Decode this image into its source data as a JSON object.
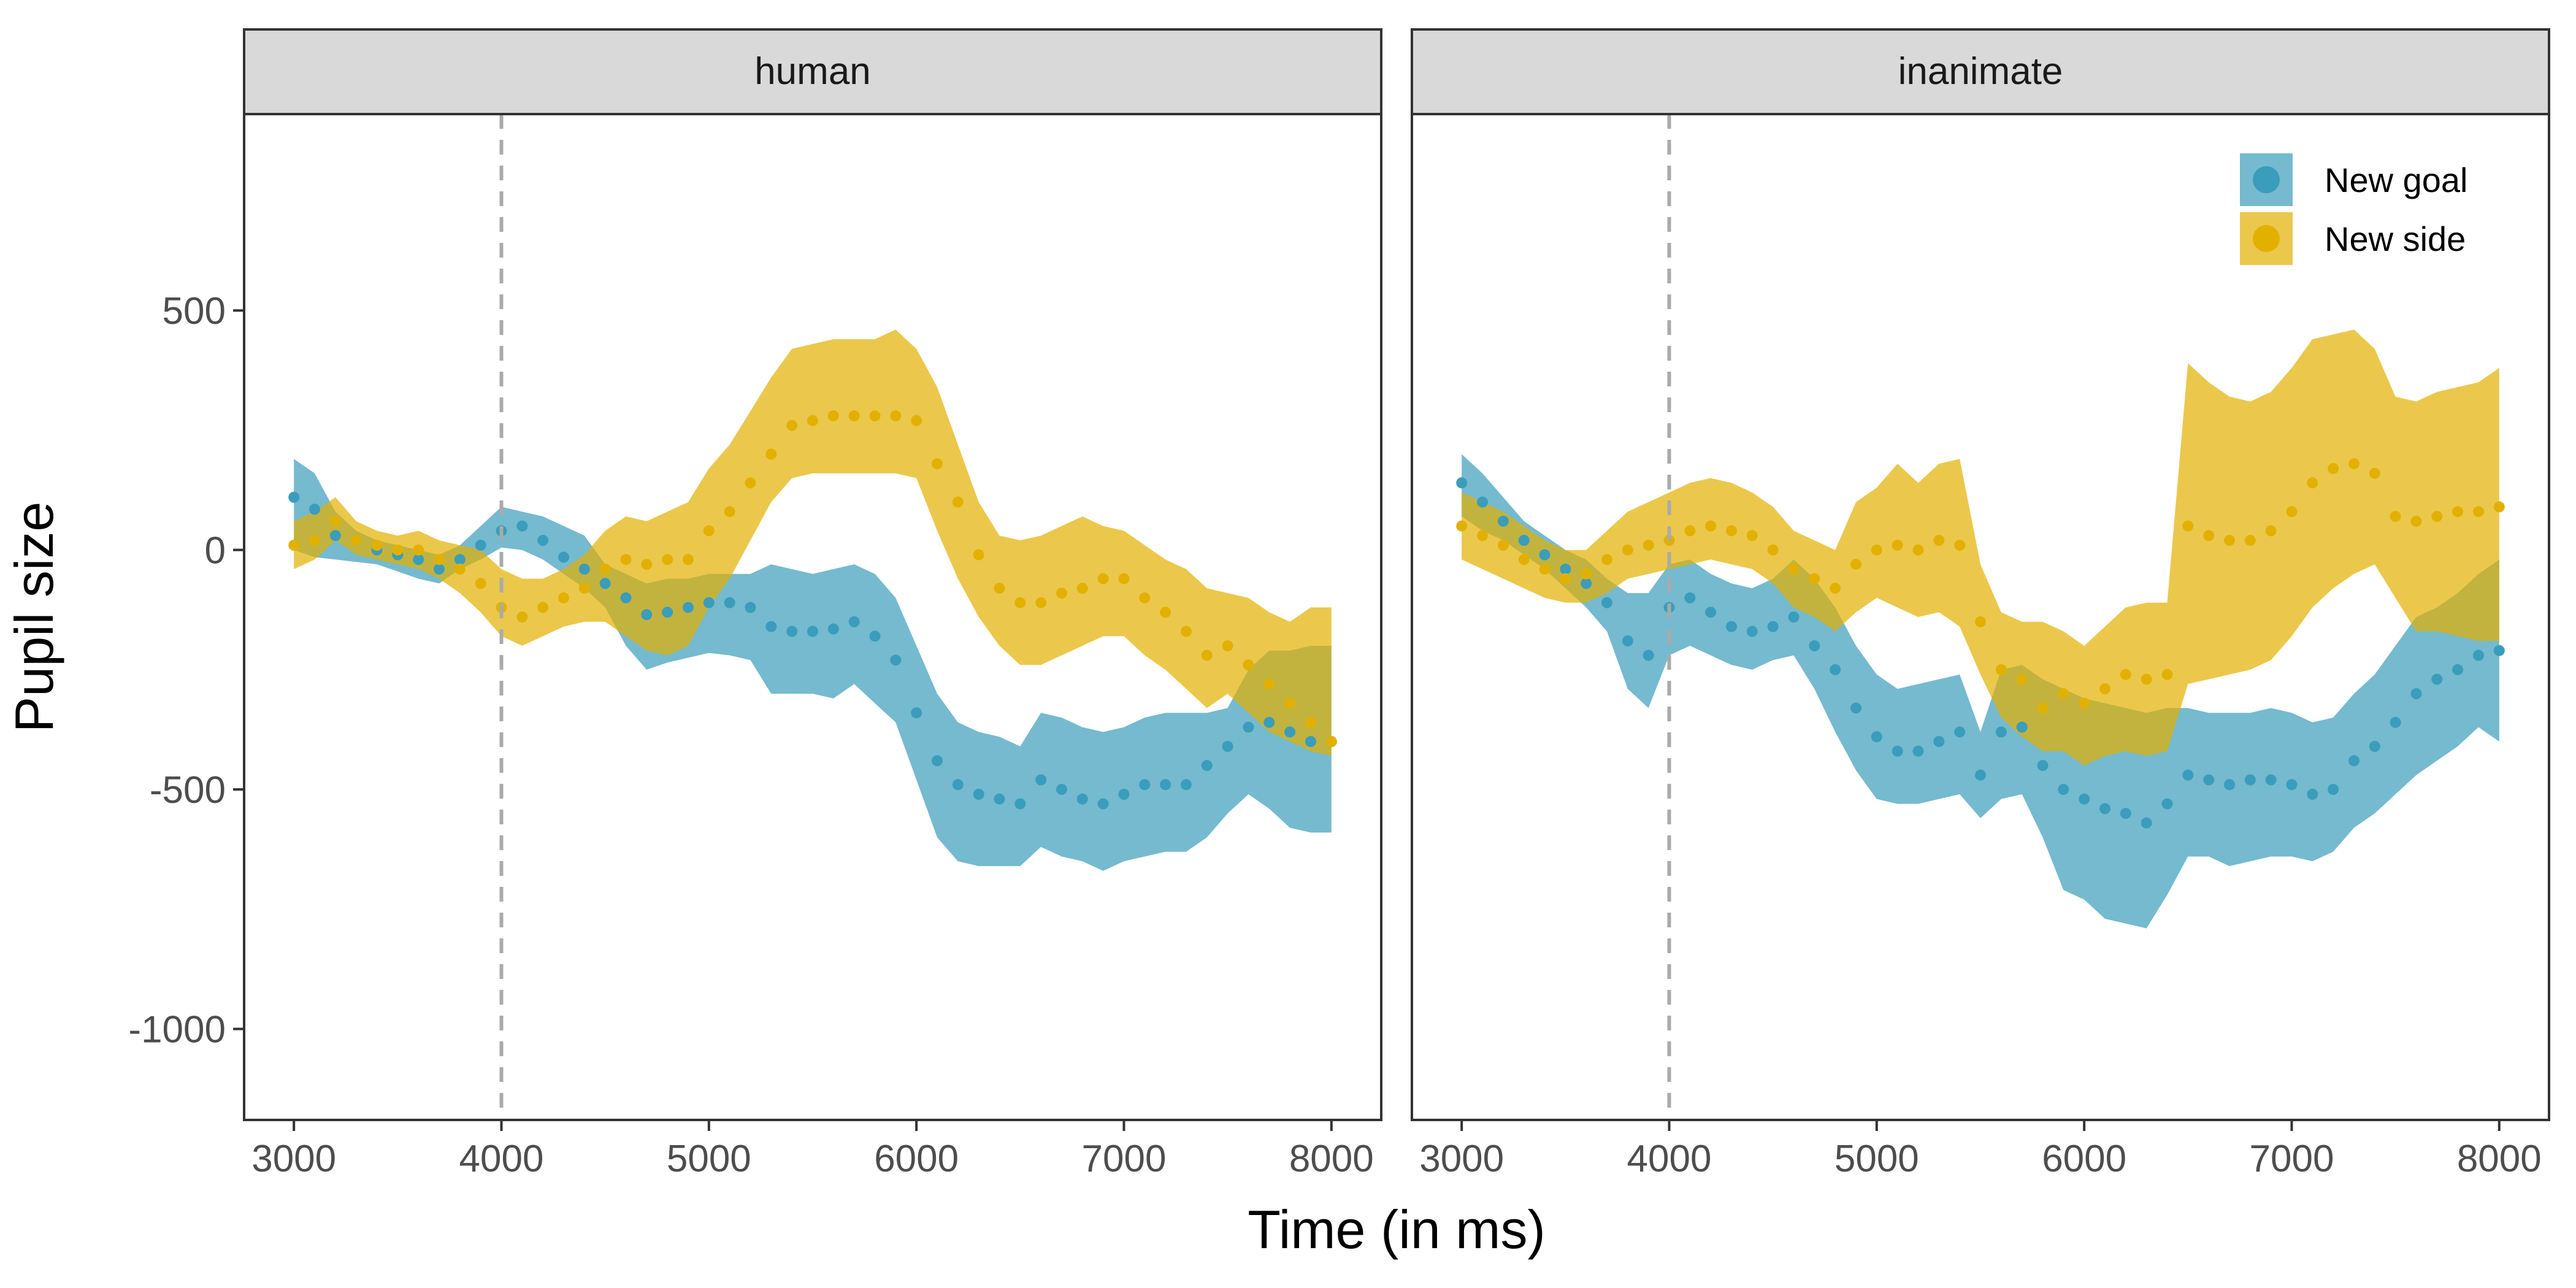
{
  "chart_data": {
    "type": "scatter",
    "xlabel": "Time (in ms)",
    "ylabel": "Pupil size",
    "xlim": [
      2760,
      8240
    ],
    "ylim": [
      -1190,
      910
    ],
    "x_ticks": [
      3000,
      4000,
      5000,
      6000,
      7000,
      8000
    ],
    "y_ticks": [
      500,
      0,
      -500,
      -1000
    ],
    "reference_line_x": 4000,
    "colors": {
      "New goal": "#3A9DBB",
      "New side": "#E2B100"
    },
    "legend": {
      "position": "top-right",
      "entries": [
        "New goal",
        "New side"
      ]
    },
    "panels": [
      {
        "label": "human",
        "series": [
          {
            "name": "New goal",
            "x": [
              3000,
              3100,
              3200,
              3300,
              3400,
              3500,
              3600,
              3700,
              3800,
              3900,
              4000,
              4100,
              4200,
              4300,
              4400,
              4500,
              4600,
              4700,
              4800,
              4900,
              5000,
              5100,
              5200,
              5300,
              5400,
              5500,
              5600,
              5700,
              5800,
              5900,
              6000,
              6100,
              6200,
              6300,
              6400,
              6500,
              6600,
              6700,
              6800,
              6900,
              7000,
              7100,
              7200,
              7300,
              7400,
              7500,
              7600,
              7700,
              7800,
              7900,
              8000
            ],
            "y": [
              110,
              85,
              30,
              20,
              0,
              -10,
              -20,
              -40,
              -20,
              10,
              40,
              50,
              20,
              -15,
              -40,
              -70,
              -100,
              -135,
              -130,
              -120,
              -110,
              -110,
              -120,
              -160,
              -170,
              -170,
              -165,
              -150,
              -180,
              -230,
              -340,
              -440,
              -490,
              -510,
              -520,
              -530,
              -480,
              -500,
              -520,
              -530,
              -510,
              -490,
              -490,
              -490,
              -450,
              -410,
              -370,
              -360,
              -380,
              -400,
              -400
            ],
            "lower": [
              0,
              -15,
              -20,
              -25,
              -30,
              -45,
              -60,
              -70,
              -40,
              -20,
              5,
              0,
              -20,
              -50,
              -80,
              -120,
              -200,
              -250,
              -235,
              -225,
              -215,
              -220,
              -230,
              -300,
              -300,
              -300,
              -310,
              -280,
              -320,
              -360,
              -480,
              -600,
              -650,
              -660,
              -660,
              -660,
              -620,
              -640,
              -650,
              -670,
              -650,
              -640,
              -630,
              -630,
              -600,
              -550,
              -510,
              -540,
              -580,
              -590,
              -590
            ],
            "upper": [
              190,
              160,
              80,
              40,
              20,
              10,
              0,
              -10,
              10,
              50,
              90,
              80,
              70,
              50,
              30,
              -30,
              -50,
              -70,
              -60,
              -60,
              -50,
              -50,
              -50,
              -30,
              -40,
              -50,
              -40,
              -30,
              -50,
              -100,
              -200,
              -300,
              -360,
              -380,
              -390,
              -410,
              -340,
              -350,
              -370,
              -380,
              -370,
              -350,
              -340,
              -340,
              -340,
              -330,
              -250,
              -210,
              -210,
              -200,
              -200
            ]
          },
          {
            "name": "New side",
            "x": [
              3000,
              3100,
              3200,
              3300,
              3400,
              3500,
              3600,
              3700,
              3800,
              3900,
              4000,
              4100,
              4200,
              4300,
              4400,
              4500,
              4600,
              4700,
              4800,
              4900,
              5000,
              5100,
              5200,
              5300,
              5400,
              5500,
              5600,
              5700,
              5800,
              5900,
              6000,
              6100,
              6200,
              6300,
              6400,
              6500,
              6600,
              6700,
              6800,
              6900,
              7000,
              7100,
              7200,
              7300,
              7400,
              7500,
              7600,
              7700,
              7800,
              7900,
              8000
            ],
            "y": [
              10,
              20,
              60,
              20,
              10,
              0,
              0,
              -20,
              -40,
              -70,
              -120,
              -140,
              -120,
              -100,
              -80,
              -40,
              -20,
              -30,
              -20,
              -20,
              40,
              80,
              140,
              200,
              260,
              270,
              280,
              280,
              280,
              280,
              270,
              180,
              100,
              -10,
              -80,
              -110,
              -110,
              -90,
              -80,
              -60,
              -60,
              -100,
              -130,
              -170,
              -220,
              -200,
              -240,
              -280,
              -320,
              -360,
              -400
            ],
            "lower": [
              -40,
              -20,
              20,
              -10,
              -20,
              -30,
              -40,
              -60,
              -90,
              -130,
              -180,
              -200,
              -180,
              -160,
              -150,
              -150,
              -180,
              -210,
              -220,
              -200,
              -120,
              -60,
              20,
              100,
              150,
              160,
              160,
              160,
              160,
              160,
              150,
              40,
              -60,
              -140,
              -200,
              -240,
              -240,
              -220,
              -200,
              -180,
              -180,
              -220,
              -250,
              -290,
              -330,
              -300,
              -340,
              -380,
              -400,
              -420,
              -430
            ],
            "upper": [
              60,
              80,
              110,
              60,
              40,
              30,
              40,
              20,
              10,
              0,
              -40,
              -60,
              -60,
              -40,
              -10,
              40,
              70,
              60,
              80,
              100,
              170,
              220,
              290,
              360,
              420,
              430,
              440,
              440,
              440,
              460,
              420,
              340,
              220,
              100,
              30,
              20,
              30,
              50,
              70,
              50,
              40,
              10,
              -20,
              -40,
              -80,
              -90,
              -100,
              -130,
              -150,
              -120,
              -120
            ]
          }
        ]
      },
      {
        "label": "inanimate",
        "series": [
          {
            "name": "New goal",
            "x": [
              3000,
              3100,
              3200,
              3300,
              3400,
              3500,
              3600,
              3700,
              3800,
              3900,
              4000,
              4100,
              4200,
              4300,
              4400,
              4500,
              4600,
              4700,
              4800,
              4900,
              5000,
              5100,
              5200,
              5300,
              5400,
              5500,
              5600,
              5700,
              5800,
              5900,
              6000,
              6100,
              6200,
              6300,
              6400,
              6500,
              6600,
              6700,
              6800,
              6900,
              7000,
              7100,
              7200,
              7300,
              7400,
              7500,
              7600,
              7700,
              7800,
              7900,
              8000
            ],
            "y": [
              140,
              100,
              60,
              20,
              -10,
              -40,
              -70,
              -110,
              -190,
              -220,
              -120,
              -100,
              -130,
              -160,
              -170,
              -160,
              -140,
              -200,
              -250,
              -330,
              -390,
              -420,
              -420,
              -400,
              -380,
              -470,
              -380,
              -370,
              -450,
              -500,
              -520,
              -540,
              -550,
              -570,
              -530,
              -470,
              -480,
              -490,
              -480,
              -480,
              -490,
              -510,
              -500,
              -440,
              -410,
              -360,
              -300,
              -270,
              -250,
              -220,
              -210
            ],
            "lower": [
              70,
              40,
              20,
              -10,
              -40,
              -80,
              -120,
              -170,
              -290,
              -330,
              -220,
              -200,
              -220,
              -240,
              -250,
              -230,
              -220,
              -290,
              -380,
              -460,
              -520,
              -530,
              -530,
              -520,
              -510,
              -560,
              -520,
              -510,
              -600,
              -710,
              -730,
              -770,
              -780,
              -790,
              -720,
              -640,
              -640,
              -660,
              -650,
              -640,
              -640,
              -650,
              -630,
              -580,
              -550,
              -510,
              -470,
              -440,
              -410,
              -370,
              -400
            ],
            "upper": [
              200,
              160,
              110,
              60,
              30,
              0,
              -20,
              -60,
              -90,
              -90,
              -30,
              -20,
              -50,
              -70,
              -80,
              -60,
              -20,
              -60,
              -120,
              -200,
              -260,
              -290,
              -280,
              -270,
              -260,
              -380,
              -250,
              -240,
              -270,
              -290,
              -310,
              -320,
              -330,
              -340,
              -330,
              -330,
              -340,
              -340,
              -340,
              -330,
              -340,
              -360,
              -350,
              -300,
              -260,
              -200,
              -140,
              -120,
              -90,
              -50,
              -20
            ]
          },
          {
            "name": "New side",
            "x": [
              3000,
              3100,
              3200,
              3300,
              3400,
              3500,
              3600,
              3700,
              3800,
              3900,
              4000,
              4100,
              4200,
              4300,
              4400,
              4500,
              4600,
              4700,
              4800,
              4900,
              5000,
              5100,
              5200,
              5300,
              5400,
              5500,
              5600,
              5700,
              5800,
              5900,
              6000,
              6100,
              6200,
              6300,
              6400,
              6500,
              6600,
              6700,
              6800,
              6900,
              7000,
              7100,
              7200,
              7300,
              7400,
              7500,
              7600,
              7700,
              7800,
              7900,
              8000
            ],
            "y": [
              50,
              30,
              10,
              -20,
              -40,
              -60,
              -50,
              -20,
              0,
              10,
              20,
              40,
              50,
              40,
              30,
              0,
              -40,
              -60,
              -80,
              -30,
              0,
              10,
              0,
              20,
              10,
              -150,
              -250,
              -270,
              -330,
              -300,
              -320,
              -290,
              -260,
              -270,
              -260,
              50,
              30,
              20,
              20,
              40,
              80,
              140,
              170,
              180,
              160,
              70,
              60,
              70,
              80,
              80,
              90
            ],
            "lower": [
              -20,
              -40,
              -60,
              -80,
              -100,
              -110,
              -110,
              -90,
              -60,
              -50,
              -40,
              -30,
              -20,
              -30,
              -40,
              -70,
              -120,
              -140,
              -170,
              -130,
              -100,
              -120,
              -140,
              -130,
              -160,
              -260,
              -350,
              -390,
              -420,
              -420,
              -450,
              -430,
              -420,
              -430,
              -420,
              -280,
              -270,
              -260,
              -250,
              -230,
              -180,
              -120,
              -80,
              -50,
              -30,
              -100,
              -170,
              -170,
              -180,
              -190,
              -190
            ],
            "upper": [
              120,
              100,
              80,
              50,
              20,
              0,
              0,
              40,
              80,
              100,
              120,
              140,
              150,
              140,
              120,
              90,
              40,
              20,
              0,
              100,
              130,
              180,
              140,
              180,
              190,
              -30,
              -130,
              -150,
              -150,
              -170,
              -200,
              -160,
              -120,
              -110,
              -110,
              390,
              350,
              320,
              310,
              330,
              380,
              440,
              450,
              460,
              420,
              320,
              310,
              330,
              340,
              350,
              380
            ]
          }
        ]
      }
    ]
  }
}
